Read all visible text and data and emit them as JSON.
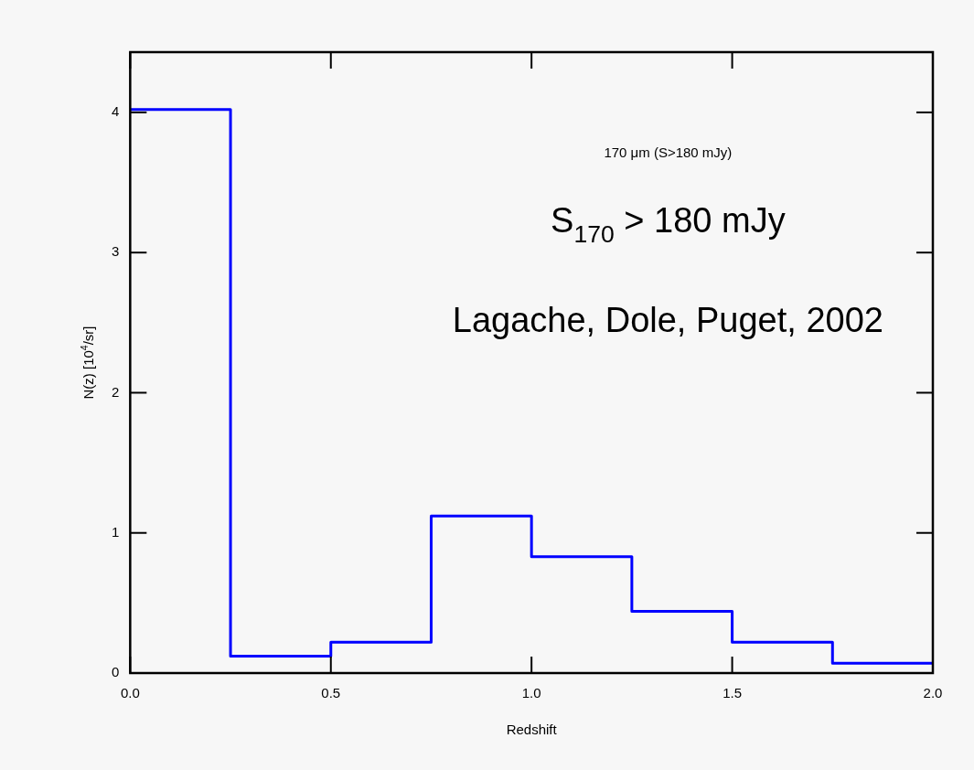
{
  "chart_data": {
    "type": "histogram",
    "xlabel": "Redshift",
    "ylabel": "N(z) [10$^{4}$/sr]",
    "bins": [
      0,
      0.25,
      0.5,
      0.75,
      1.0,
      1.25,
      1.5,
      1.75,
      2.0
    ],
    "values": [
      4.02,
      0.12,
      0.22,
      1.12,
      0.83,
      0.44,
      0.22,
      0.07
    ],
    "color": "#0000ff",
    "xlim": [
      0,
      2
    ],
    "xticks": [
      {
        "value": 0,
        "label": "0.0"
      },
      {
        "value": 0.5,
        "label": "0.5"
      },
      {
        "value": 1,
        "label": "1.0"
      },
      {
        "value": 1.5,
        "label": "1.5"
      },
      {
        "value": 2,
        "label": "2.0"
      }
    ],
    "ylim": [
      0,
      4.43
    ],
    "yticks": [
      0,
      1,
      2,
      3,
      4
    ],
    "grid": false,
    "legend": false,
    "annotations": [
      "170 μm (S>180 mJy)",
      "S$_{170}$ > 180 mJy",
      "Lagache, Dole, Puget, 2002"
    ]
  }
}
